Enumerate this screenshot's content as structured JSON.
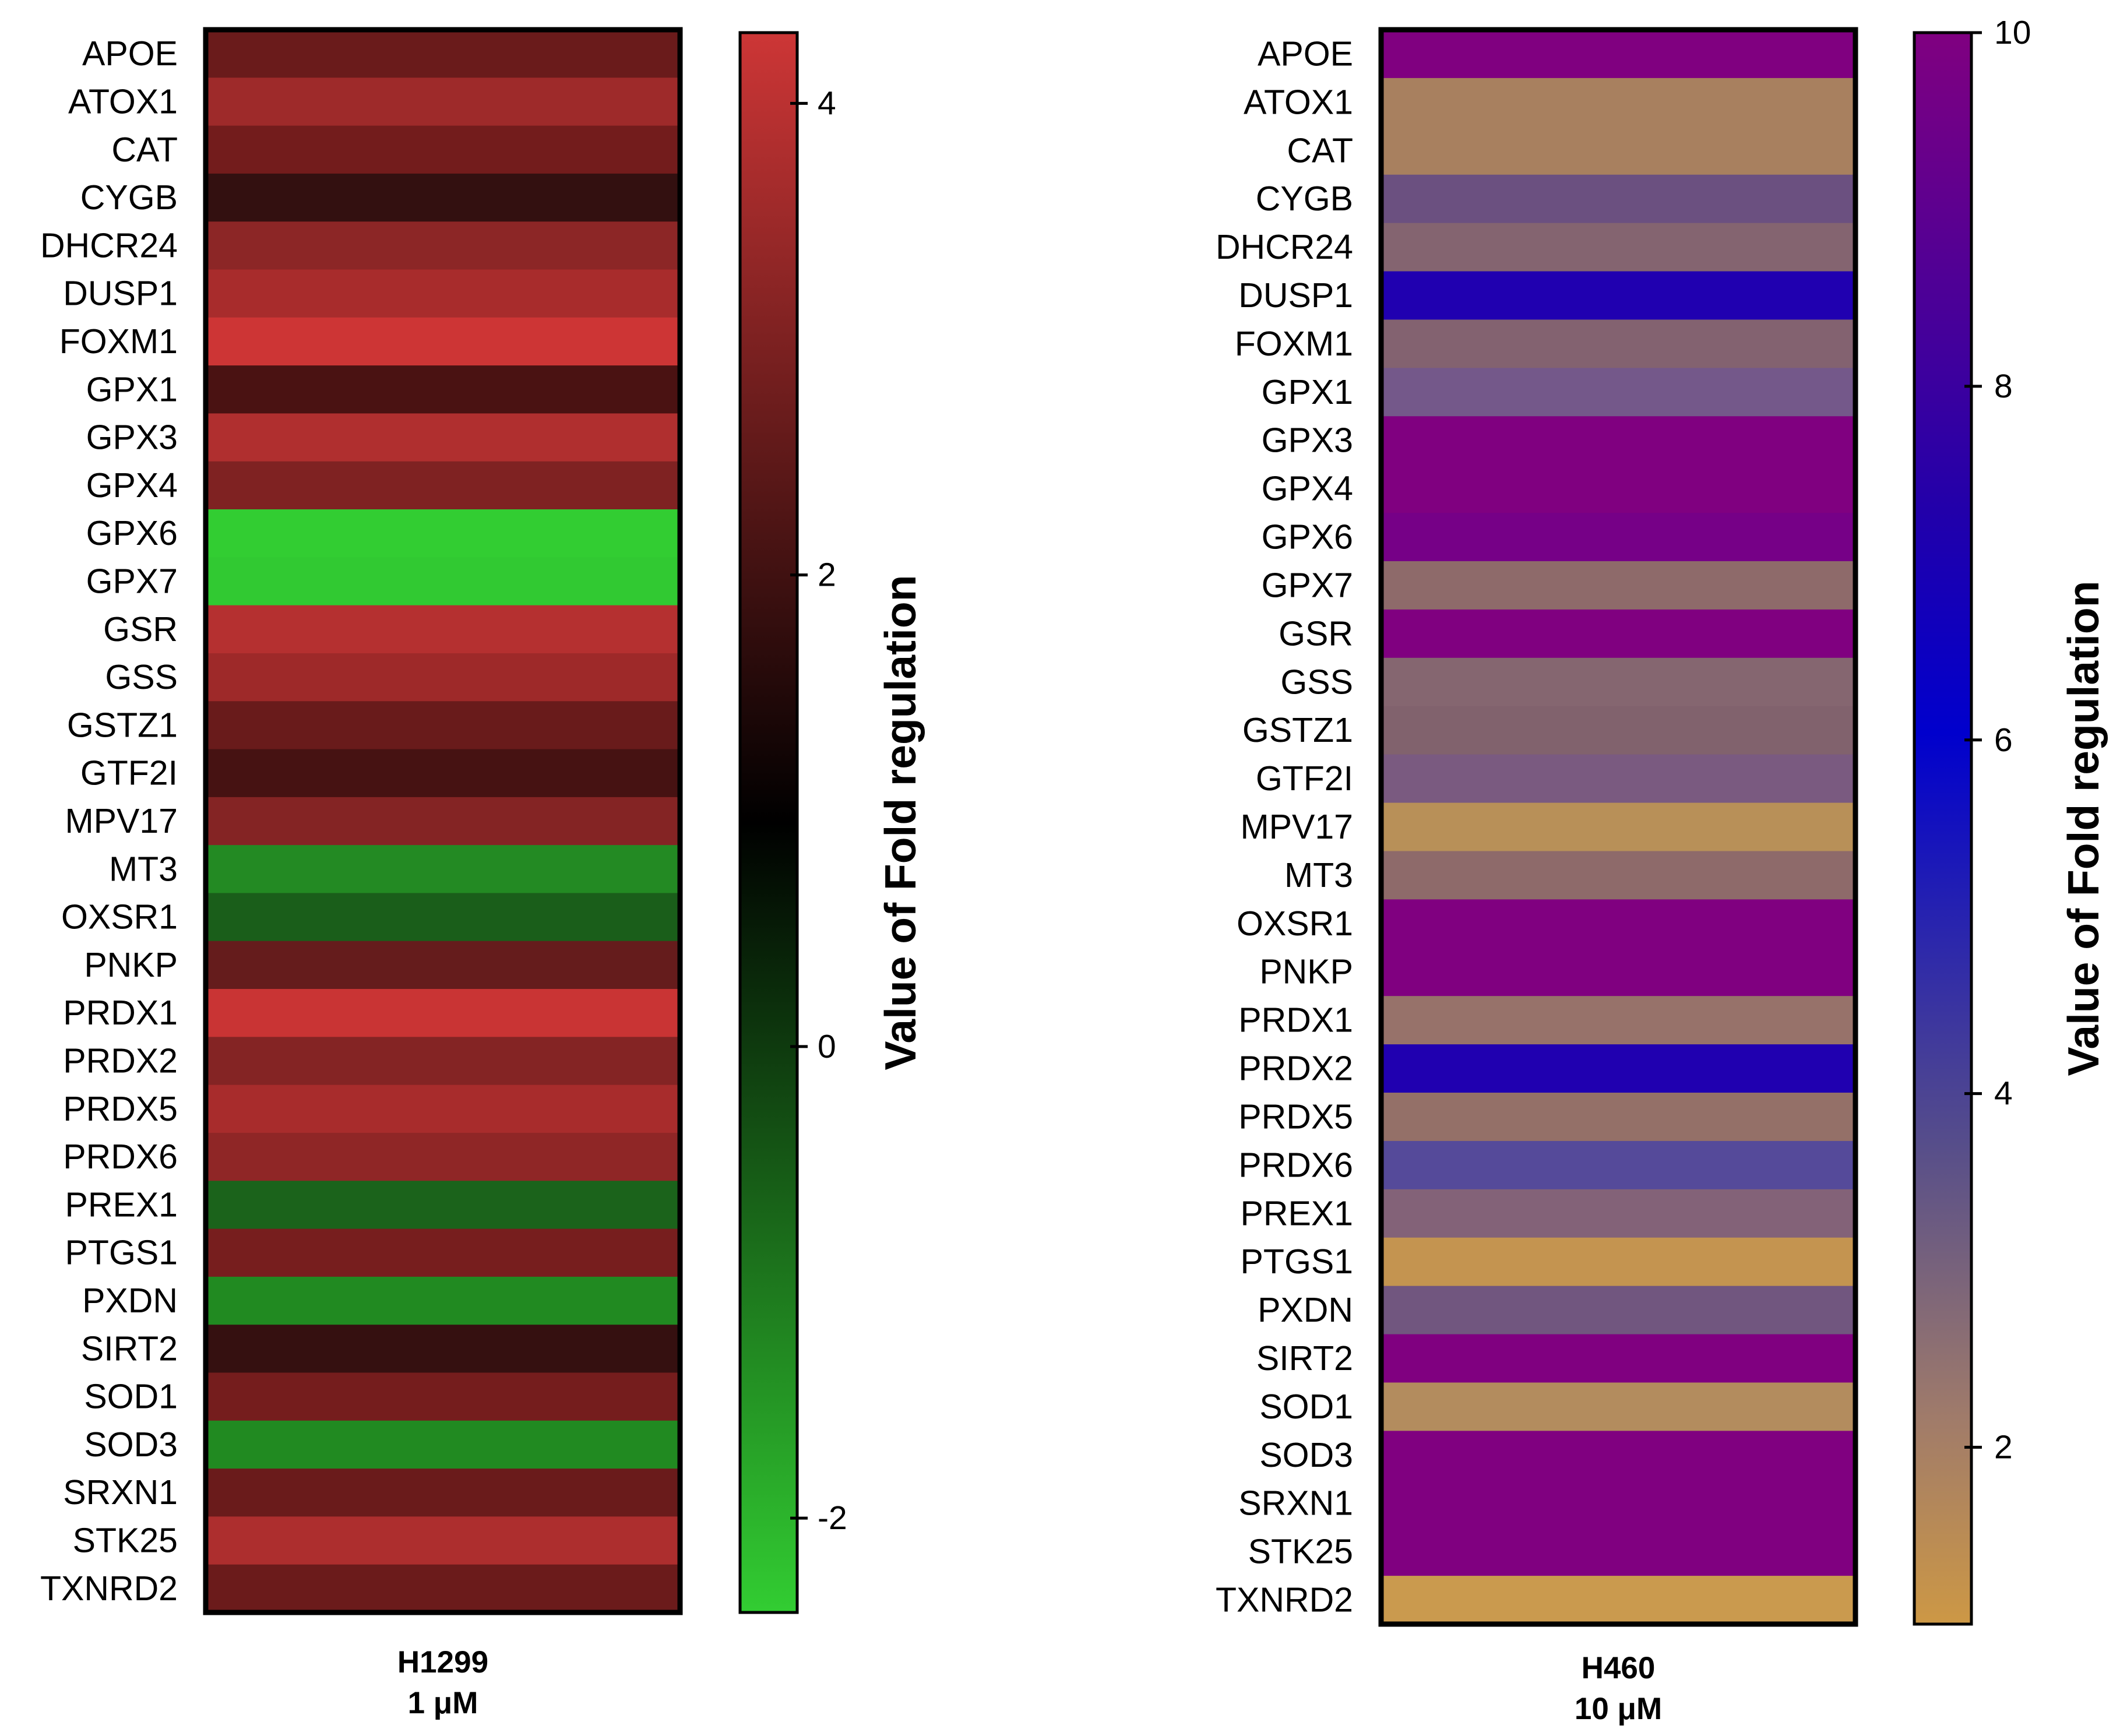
{
  "chart_data": [
    {
      "type": "heatmap",
      "caption_line1": "H1299",
      "caption_line2": "1 μM",
      "colorbar_title": "Value of Fold regulation",
      "colorbar_range": [
        -2.4,
        4.3
      ],
      "colorbar_ticks": [
        4,
        2,
        0,
        -2
      ],
      "colorbar_tick_labels": [
        "4",
        "2",
        "0",
        "-2"
      ],
      "colorbar_stops": [
        {
          "offset": 0,
          "color": "#cd3636"
        },
        {
          "offset": 0.5,
          "color": "#000000"
        },
        {
          "offset": 1,
          "color": "#32cd32"
        }
      ],
      "genes": [
        "APOE",
        "ATOX1",
        "CAT",
        "CYGB",
        "DHCR24",
        "DUSP1",
        "FOXM1",
        "GPX1",
        "GPX3",
        "GPX4",
        "GPX6",
        "GPX7",
        "GSR",
        "GSS",
        "GSTZ1",
        "GTF2I",
        "MPV17",
        "MT3",
        "OXSR1",
        "PNKP",
        "PRDX1",
        "PRDX2",
        "PRDX5",
        "PRDX6",
        "PREX1",
        "PTGS1",
        "PXDN",
        "SIRT2",
        "SOD1",
        "SOD3",
        "SRXN1",
        "STK25",
        "TXNRD2"
      ],
      "values": [
        2.1,
        3.0,
        2.4,
        1.2,
        2.8,
        3.3,
        4.1,
        1.5,
        3.4,
        2.7,
        -2.3,
        -2.3,
        3.6,
        3.1,
        2.2,
        1.4,
        2.6,
        -1.6,
        -1.1,
        2.2,
        4.1,
        2.6,
        3.3,
        3.0,
        -1.2,
        2.5,
        -1.5,
        1.2,
        2.3,
        -1.6,
        2.1,
        3.5,
        2.1
      ],
      "colors": [
        "#6a1b1b",
        "#9e2a2a",
        "#731c1c",
        "#331010",
        "#8c2626",
        "#a82c2c",
        "#cd3535",
        "#4a1212",
        "#b02f2f",
        "#7f2222",
        "#32cd32",
        "#31c932",
        "#b53030",
        "#9e2929",
        "#691b1b",
        "#461212",
        "#842424",
        "#238a23",
        "#1a5e1a",
        "#651c1c",
        "#c93434",
        "#842424",
        "#a82c2c",
        "#8f2626",
        "#1b631b",
        "#771e1e",
        "#218a21",
        "#351010",
        "#751d1d",
        "#218a21",
        "#6a1b1b",
        "#ad2e2e",
        "#6b1b1b"
      ]
    },
    {
      "type": "heatmap",
      "caption_line1": "H460",
      "caption_line2": "10 μM",
      "colorbar_title": "Value of Fold regulation",
      "colorbar_range": [
        1,
        10
      ],
      "colorbar_ticks": [
        10,
        8,
        6,
        4,
        2
      ],
      "colorbar_tick_labels": [
        "10",
        "8",
        "6",
        "4",
        "2"
      ],
      "colorbar_stops": [
        {
          "offset": 0,
          "color": "#800080"
        },
        {
          "offset": 0.3,
          "color": "#2200aa"
        },
        {
          "offset": 0.44,
          "color": "#0000cd"
        },
        {
          "offset": 0.7,
          "color": "#574e8a"
        },
        {
          "offset": 0.87,
          "color": "#a07b6a"
        },
        {
          "offset": 1,
          "color": "#cd9845"
        }
      ],
      "genes": [
        "APOE",
        "ATOX1",
        "CAT",
        "CYGB",
        "DHCR24",
        "DUSP1",
        "FOXM1",
        "GPX1",
        "GPX3",
        "GPX4",
        "GPX6",
        "GPX7",
        "GSR",
        "GSS",
        "GSTZ1",
        "GTF2I",
        "MPV17",
        "MT3",
        "OXSR1",
        "PNKP",
        "PRDX1",
        "PRDX2",
        "PRDX5",
        "PRDX6",
        "PREX1",
        "PTGS1",
        "PXDN",
        "SIRT2",
        "SOD1",
        "SOD3",
        "SRXN1",
        "STK25",
        "TXNRD2"
      ],
      "values": [
        10,
        1.5,
        1.5,
        3.0,
        2.3,
        7.5,
        2.3,
        3.0,
        10,
        10,
        9.5,
        2.0,
        10,
        2.2,
        2.4,
        2.7,
        1.2,
        2.1,
        10,
        10,
        1.8,
        7.5,
        1.9,
        3.6,
        2.5,
        1.2,
        3.0,
        10,
        1.4,
        10,
        10,
        10,
        1.1
      ],
      "colors": [
        "#800080",
        "#a8805f",
        "#a8805f",
        "#6b5080",
        "#846470",
        "#2000b0",
        "#836270",
        "#74588a",
        "#800080",
        "#800080",
        "#760087",
        "#8e6a6a",
        "#800080",
        "#856670",
        "#81626d",
        "#7a5a80",
        "#b89058",
        "#8e6a6a",
        "#800080",
        "#800080",
        "#97726a",
        "#2000b0",
        "#947068",
        "#554a9a",
        "#836278",
        "#c49450",
        "#71567f",
        "#800080",
        "#b38c5e",
        "#800080",
        "#800080",
        "#800080",
        "#ca9a4e"
      ]
    }
  ]
}
